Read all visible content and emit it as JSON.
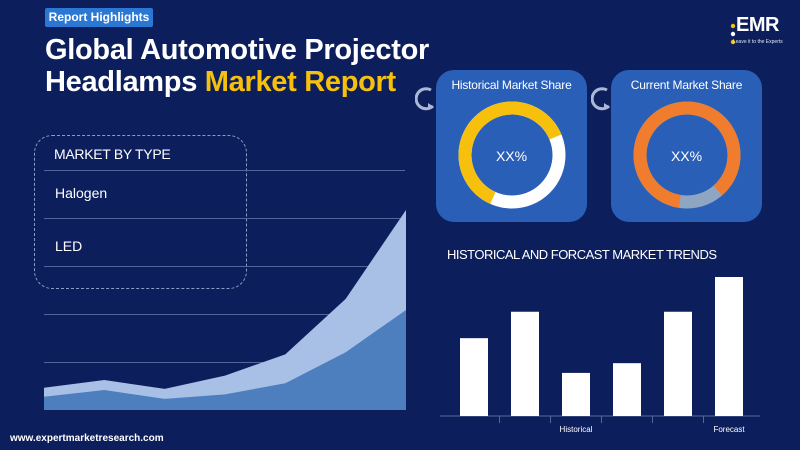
{
  "header": {
    "badge": "Report Highlights",
    "title_line1": "Global Automotive Projector",
    "title_line2_white": "Headlamps",
    "title_line2_accent": "Market Report"
  },
  "logo": {
    "name": "EMR",
    "tagline": "Leave it to the Experts"
  },
  "market_by_type": {
    "heading": "MARKET BY TYPE",
    "items": [
      "Halogen",
      "LED"
    ]
  },
  "share_cards": [
    {
      "title": "Historical Market Share",
      "value": "XX%",
      "ring_color": "#f7c00d",
      "rest_color": "#ffffff",
      "fraction": 0.62
    },
    {
      "title": "Current Market Share",
      "value": "XX%",
      "ring_color": "#ef7d2d",
      "rest_color": "#8fa6c2",
      "fraction": 0.86
    }
  ],
  "chart_data": [
    {
      "type": "area",
      "title": "",
      "series": [
        {
          "values": [
            20,
            27,
            19,
            31,
            50,
            100,
            180
          ]
        },
        {
          "values": [
            12,
            18,
            10,
            14,
            24,
            52,
            90
          ]
        }
      ],
      "colors": [
        "#a9c0e6",
        "#4d7fbf"
      ],
      "ylim": [
        0,
        180
      ]
    },
    {
      "type": "bar",
      "title": "HISTORICAL AND FORCAST MARKET TRENDS",
      "categories": [
        "",
        "",
        "Historical",
        "",
        "",
        "Forecast"
      ],
      "values": [
        56,
        75,
        31,
        38,
        75,
        100
      ],
      "ylim": [
        0,
        100
      ],
      "color": "#ffffff"
    }
  ],
  "footer": {
    "website": "www.expertmarketresearch.com"
  }
}
